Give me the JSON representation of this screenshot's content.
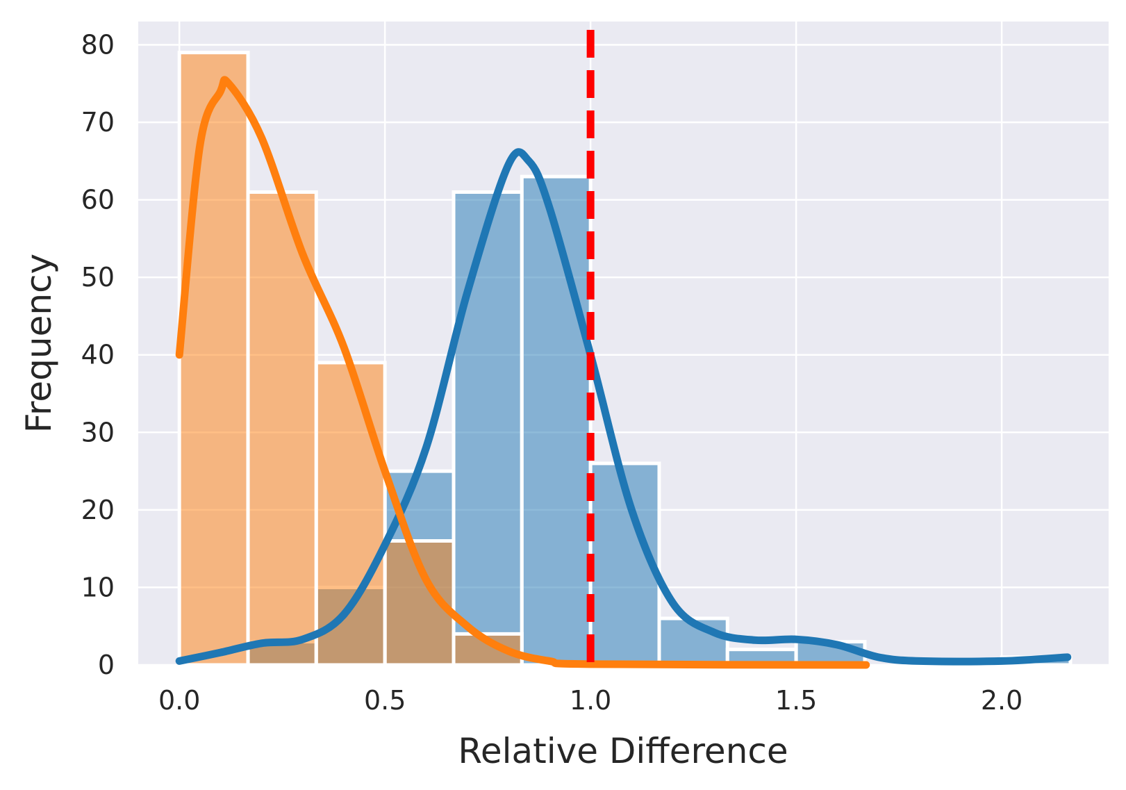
{
  "chart_data": {
    "type": "bar",
    "title": "",
    "xlabel": "Relative Difference",
    "ylabel": "Frequency",
    "xlim": [
      -0.1,
      2.26
    ],
    "ylim": [
      0,
      83
    ],
    "xticks": [
      0.0,
      0.5,
      1.0,
      1.5,
      2.0
    ],
    "xtick_labels": [
      "0.0",
      "0.5",
      "1.0",
      "1.5",
      "2.0"
    ],
    "yticks": [
      0,
      10,
      20,
      30,
      40,
      50,
      60,
      70,
      80
    ],
    "ytick_labels": [
      "0",
      "10",
      "20",
      "30",
      "40",
      "50",
      "60",
      "70",
      "80"
    ],
    "grid": true,
    "bin_edges": [
      0.0,
      0.167,
      0.333,
      0.5,
      0.667,
      0.833,
      1.0,
      1.167,
      1.333,
      1.5,
      1.667,
      1.833,
      2.0,
      2.167
    ],
    "series": [
      {
        "name": "blue",
        "color": "#1f77b4",
        "values": [
          0,
          3,
          10,
          25,
          61,
          63,
          26,
          6,
          2,
          3,
          0,
          0,
          1
        ],
        "kde": [
          [
            0.0,
            0.5
          ],
          [
            0.1,
            1.6
          ],
          [
            0.2,
            2.8
          ],
          [
            0.3,
            3.3
          ],
          [
            0.4,
            6.5
          ],
          [
            0.5,
            15.5
          ],
          [
            0.6,
            28
          ],
          [
            0.7,
            48
          ],
          [
            0.8,
            64.5
          ],
          [
            0.85,
            65
          ],
          [
            0.9,
            59
          ],
          [
            1.0,
            40
          ],
          [
            1.1,
            20
          ],
          [
            1.2,
            8
          ],
          [
            1.3,
            4.2
          ],
          [
            1.4,
            3.2
          ],
          [
            1.5,
            3.3
          ],
          [
            1.6,
            2.6
          ],
          [
            1.7,
            1.0
          ],
          [
            1.8,
            0.5
          ],
          [
            2.0,
            0.5
          ],
          [
            2.16,
            1.0
          ]
        ]
      },
      {
        "name": "orange",
        "color": "#ff7f0e",
        "values": [
          79,
          61,
          39,
          16,
          4,
          0,
          0,
          0,
          0,
          0,
          0,
          0,
          0
        ],
        "kde": [
          [
            0.0,
            40
          ],
          [
            0.05,
            67
          ],
          [
            0.1,
            74
          ],
          [
            0.12,
            75
          ],
          [
            0.2,
            68
          ],
          [
            0.3,
            53
          ],
          [
            0.4,
            41
          ],
          [
            0.5,
            25
          ],
          [
            0.6,
            11
          ],
          [
            0.7,
            5
          ],
          [
            0.8,
            1.8
          ],
          [
            0.9,
            0.5
          ],
          [
            1.0,
            0.1
          ],
          [
            1.67,
            0.0
          ]
        ]
      }
    ],
    "reference_line": {
      "x": 1.0,
      "color": "#ff0000",
      "style": "dashed"
    }
  }
}
